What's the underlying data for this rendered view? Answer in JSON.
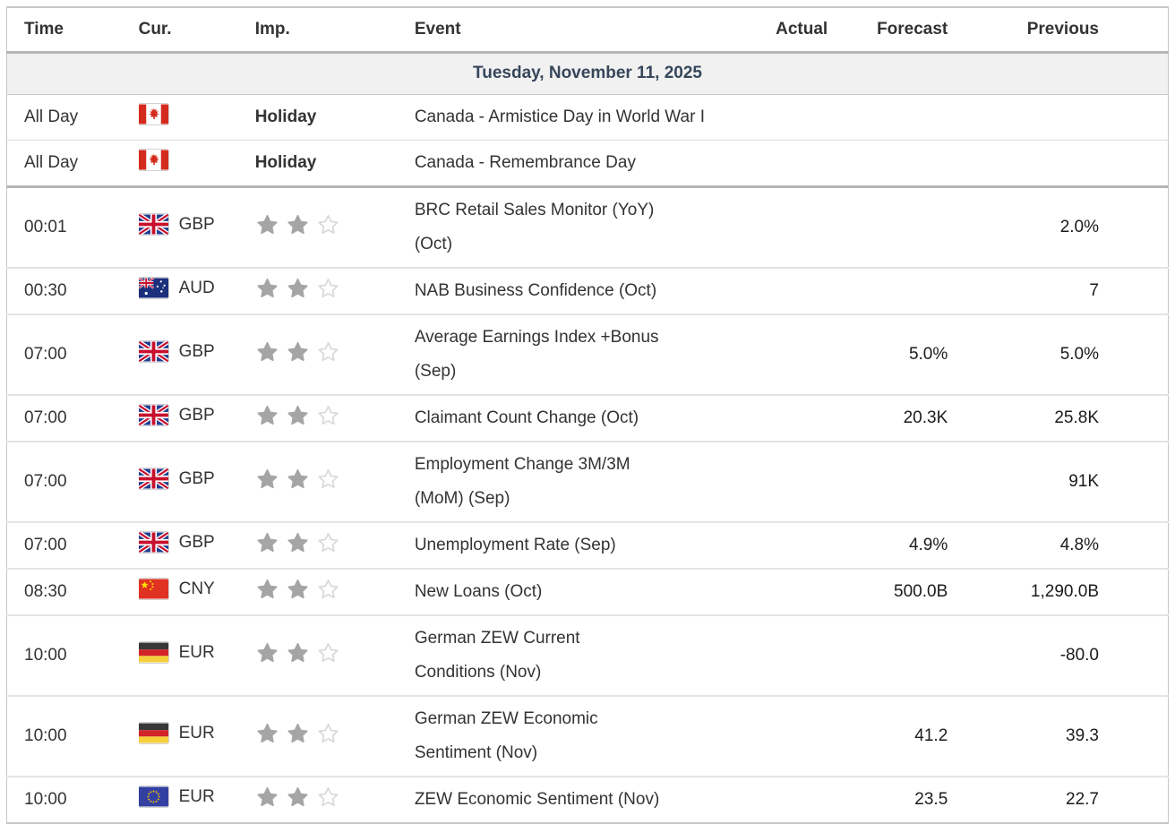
{
  "table": {
    "columns": [
      {
        "key": "time",
        "label": "Time"
      },
      {
        "key": "cur",
        "label": "Cur."
      },
      {
        "key": "imp",
        "label": "Imp."
      },
      {
        "key": "event",
        "label": "Event"
      },
      {
        "key": "actual",
        "label": "Actual"
      },
      {
        "key": "forecast",
        "label": "Forecast"
      },
      {
        "key": "previous",
        "label": "Previous"
      }
    ],
    "date_header": "Tuesday, November 11, 2025",
    "rows": [
      {
        "type": "holiday",
        "time": "All Day",
        "flag": "canada",
        "currency": "",
        "importance_label": "Holiday",
        "event_lines": [
          "Canada - Armistice Day in World War I"
        ],
        "actual": "",
        "forecast": "",
        "previous": ""
      },
      {
        "type": "holiday",
        "time": "All Day",
        "flag": "canada",
        "currency": "",
        "importance_label": "Holiday",
        "event_lines": [
          "Canada - Remembrance Day"
        ],
        "actual": "",
        "forecast": "",
        "previous": ""
      },
      {
        "type": "event",
        "time": "00:01",
        "flag": "uk",
        "currency": "GBP",
        "importance_stars": 2,
        "stars_total": 3,
        "event_lines": [
          "BRC Retail Sales Monitor (YoY)",
          "(Oct)"
        ],
        "actual": "",
        "forecast": "",
        "previous": "2.0%"
      },
      {
        "type": "event",
        "time": "00:30",
        "flag": "australia",
        "currency": "AUD",
        "importance_stars": 2,
        "stars_total": 3,
        "event_lines": [
          "NAB Business Confidence (Oct)"
        ],
        "actual": "",
        "forecast": "",
        "previous": "7"
      },
      {
        "type": "event",
        "time": "07:00",
        "flag": "uk",
        "currency": "GBP",
        "importance_stars": 2,
        "stars_total": 3,
        "event_lines": [
          "Average Earnings Index +Bonus",
          "(Sep)"
        ],
        "actual": "",
        "forecast": "5.0%",
        "previous": "5.0%"
      },
      {
        "type": "event",
        "time": "07:00",
        "flag": "uk",
        "currency": "GBP",
        "importance_stars": 2,
        "stars_total": 3,
        "event_lines": [
          "Claimant Count Change (Oct)"
        ],
        "actual": "",
        "forecast": "20.3K",
        "previous": "25.8K"
      },
      {
        "type": "event",
        "time": "07:00",
        "flag": "uk",
        "currency": "GBP",
        "importance_stars": 2,
        "stars_total": 3,
        "event_lines": [
          "Employment Change 3M/3M",
          "(MoM) (Sep)"
        ],
        "actual": "",
        "forecast": "",
        "previous": "91K"
      },
      {
        "type": "event",
        "time": "07:00",
        "flag": "uk",
        "currency": "GBP",
        "importance_stars": 2,
        "stars_total": 3,
        "event_lines": [
          "Unemployment Rate (Sep)"
        ],
        "actual": "",
        "forecast": "4.9%",
        "previous": "4.8%"
      },
      {
        "type": "event",
        "time": "08:30",
        "flag": "china",
        "currency": "CNY",
        "importance_stars": 2,
        "stars_total": 3,
        "event_lines": [
          "New Loans (Oct)"
        ],
        "actual": "",
        "forecast": "500.0B",
        "previous": "1,290.0B"
      },
      {
        "type": "event",
        "time": "10:00",
        "flag": "germany",
        "currency": "EUR",
        "importance_stars": 2,
        "stars_total": 3,
        "event_lines": [
          "German ZEW Current",
          "Conditions (Nov)"
        ],
        "actual": "",
        "forecast": "",
        "previous": "-80.0"
      },
      {
        "type": "event",
        "time": "10:00",
        "flag": "germany",
        "currency": "EUR",
        "importance_stars": 2,
        "stars_total": 3,
        "event_lines": [
          "German ZEW Economic",
          "Sentiment (Nov)"
        ],
        "actual": "",
        "forecast": "41.2",
        "previous": "39.3"
      },
      {
        "type": "event",
        "time": "10:00",
        "flag": "eu",
        "currency": "EUR",
        "importance_stars": 2,
        "stars_total": 3,
        "event_lines": [
          "ZEW Economic Sentiment (Nov)"
        ],
        "actual": "",
        "forecast": "23.5",
        "previous": "22.7"
      }
    ]
  },
  "icons": {
    "flags": [
      "canada-flag-icon",
      "uk-flag-icon",
      "australia-flag-icon",
      "china-flag-icon",
      "germany-flag-icon",
      "eu-flag-icon"
    ],
    "importance": "star-icon"
  },
  "colors": {
    "date_header_text": "#36475a",
    "date_header_bg": "#f1f1f1",
    "header_text": "#333333",
    "cell_text": "#333333",
    "value_text": "#1b1b1b",
    "star_filled": "#a5a5a5",
    "star_empty_outline": "#d9d9d9",
    "row_divider": "#e4e4e4",
    "section_divider": "#b5b5b5",
    "holiday_divider": "#dcdcdc",
    "outer_border": "#c6c6c6"
  }
}
